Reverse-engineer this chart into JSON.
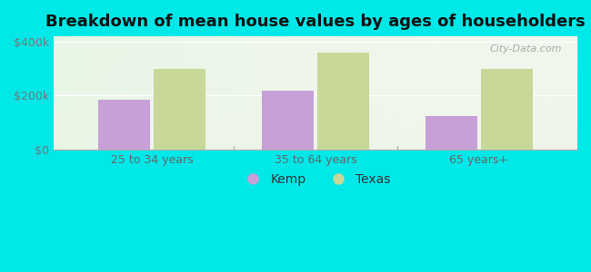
{
  "title": "Breakdown of mean house values by ages of householders",
  "categories": [
    "25 to 34 years",
    "35 to 64 years",
    "65 years+"
  ],
  "kemp_values": [
    185000,
    220000,
    125000
  ],
  "texas_values": [
    300000,
    360000,
    300000
  ],
  "kemp_color": "#c8a0d8",
  "texas_color": "#c8d898",
  "background_outer": "#00e8e8",
  "background_inner": "#eef5e8",
  "ylim": [
    0,
    420000
  ],
  "yticks": [
    0,
    200000,
    400000
  ],
  "ytick_labels": [
    "$0",
    "$200k",
    "$400k"
  ],
  "legend_labels": [
    "Kemp",
    "Texas"
  ],
  "bar_width": 0.32,
  "title_fontsize": 13,
  "tick_fontsize": 9,
  "legend_fontsize": 10,
  "watermark": "City-Data.com"
}
